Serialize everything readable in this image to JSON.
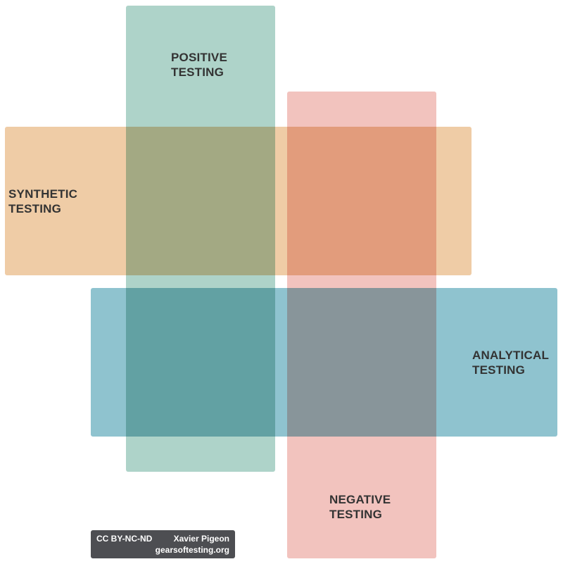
{
  "bands": {
    "positive": {
      "line1": "POSITIVE",
      "line2": "TESTING",
      "color": "#aed3c9"
    },
    "negative": {
      "line1": "NEGATIVE",
      "line2": "TESTING",
      "color": "#f2c3be"
    },
    "synthetic": {
      "line1": "SYNTHETIC",
      "line2": "TESTING",
      "color": "#efcca6"
    },
    "analytical": {
      "line1": "ANALYTICAL",
      "line2": "TESTING",
      "color": "#8fc3cf"
    }
  },
  "credit": {
    "license": "CC BY-NC-ND",
    "author": "Xavier Pigeon",
    "site": "gearsoftesting.org",
    "background": "#4d4e52"
  }
}
